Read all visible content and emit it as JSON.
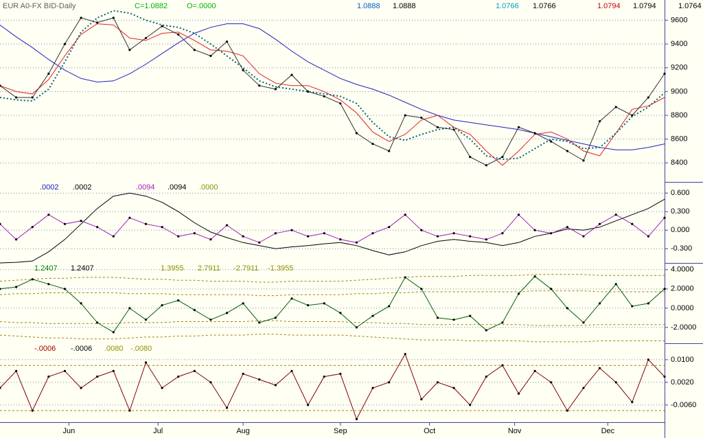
{
  "chart_data": [
    {
      "type": "line",
      "title": "EUR A0-FX BID-Daily",
      "annotations": [
        {
          "text": "C=1.0882",
          "color": "#00b000"
        },
        {
          "text": "O=.0000",
          "color": "#00b000"
        },
        {
          "text": "1.0888",
          "color": "#0060c0"
        },
        {
          "text": "1.0888",
          "color": "#000000"
        },
        {
          "text": "1.0766",
          "color": "#00a0c0"
        },
        {
          "text": "1.0766",
          "color": "#000000"
        },
        {
          "text": "1.0794",
          "color": "#c00000"
        },
        {
          "text": "1.0794",
          "color": "#000000"
        },
        {
          "text": "1.0764",
          "color": "#000000"
        }
      ],
      "x": [
        0,
        4,
        8,
        12,
        16,
        20,
        24,
        28,
        32,
        36,
        40,
        44,
        48,
        52,
        56,
        60,
        64,
        68,
        72,
        76,
        80,
        84,
        88,
        92,
        96,
        100,
        104,
        108,
        112,
        116,
        120,
        124,
        128,
        132,
        136,
        140,
        144,
        148,
        152,
        156,
        160,
        164
      ],
      "xlim": [
        0,
        164
      ],
      "ylim": [
        8240,
        9770
      ],
      "yticks": [
        9600,
        9400,
        9200,
        9000,
        8800,
        8600,
        8400
      ],
      "grid": true,
      "series": [
        {
          "color": "#2020c0",
          "style": "solid",
          "values": [
            9560,
            9460,
            9370,
            9270,
            9180,
            9110,
            9080,
            9090,
            9150,
            9230,
            9320,
            9410,
            9490,
            9540,
            9570,
            9570,
            9530,
            9440,
            9340,
            9250,
            9180,
            9110,
            9060,
            9020,
            8970,
            8910,
            8850,
            8800,
            8760,
            8740,
            8720,
            8700,
            8680,
            8650,
            8620,
            8590,
            8560,
            8530,
            8510,
            8510,
            8530,
            8560
          ]
        },
        {
          "color": "#e02020",
          "style": "solid",
          "values": [
            9050,
            9000,
            8980,
            9100,
            9300,
            9480,
            9570,
            9560,
            9450,
            9430,
            9490,
            9500,
            9430,
            9350,
            9340,
            9300,
            9150,
            9070,
            9050,
            9050,
            9000,
            8930,
            8820,
            8660,
            8580,
            8640,
            8760,
            8800,
            8700,
            8640,
            8500,
            8380,
            8500,
            8640,
            8660,
            8600,
            8500,
            8460,
            8650,
            8850,
            8880,
            8950
          ]
        },
        {
          "color": "#006070",
          "style": "dotted",
          "values": [
            8950,
            8930,
            8920,
            9020,
            9250,
            9500,
            9620,
            9680,
            9660,
            9600,
            9560,
            9540,
            9490,
            9400,
            9300,
            9200,
            9090,
            9040,
            9020,
            9000,
            8980,
            8960,
            8900,
            8740,
            8620,
            8590,
            8640,
            8680,
            8700,
            8600,
            8460,
            8430,
            8440,
            8520,
            8600,
            8580,
            8520,
            8530,
            8650,
            8790,
            8870,
            8990
          ]
        },
        {
          "color": "#303030",
          "style": "marked",
          "values": [
            9050,
            8950,
            8950,
            9150,
            9400,
            9620,
            9580,
            9620,
            9350,
            9450,
            9550,
            9480,
            9350,
            9300,
            9420,
            9180,
            9050,
            9020,
            9140,
            9000,
            8960,
            8900,
            8650,
            8560,
            8500,
            8800,
            8780,
            8700,
            8680,
            8450,
            8380,
            8450,
            8700,
            8650,
            8580,
            8500,
            8420,
            8750,
            8870,
            8800,
            8950,
            9150
          ]
        }
      ]
    },
    {
      "type": "line",
      "annotations": [
        {
          "text": ".0002",
          "color": "#2020c0"
        },
        {
          "text": ".0002",
          "color": "#000000"
        },
        {
          "text": ".0094",
          "color": "#a020c0"
        },
        {
          "text": ".0094",
          "color": "#000000"
        },
        {
          "text": ".0000",
          "color": "#909000"
        }
      ],
      "x": [
        0,
        4,
        8,
        12,
        16,
        20,
        24,
        28,
        32,
        36,
        40,
        44,
        48,
        52,
        56,
        60,
        64,
        68,
        72,
        76,
        80,
        84,
        88,
        92,
        96,
        100,
        104,
        108,
        112,
        116,
        120,
        124,
        128,
        132,
        136,
        140,
        144,
        148,
        152,
        156,
        160,
        164
      ],
      "xlim": [
        0,
        164
      ],
      "ylim": [
        -0.53,
        0.78
      ],
      "yticks": [
        {
          "value": 0.6,
          "label": "0.600"
        },
        {
          "value": 0.3,
          "label": "0.300"
        },
        {
          "value": 0,
          "label": "0.000"
        },
        {
          "value": -0.3,
          "label": "-0.300"
        }
      ],
      "grid": true,
      "series": [
        {
          "color": "#000000",
          "style": "solid",
          "values": [
            -0.53,
            -0.52,
            -0.5,
            -0.35,
            -0.15,
            0.1,
            0.35,
            0.55,
            0.6,
            0.55,
            0.45,
            0.3,
            0.12,
            -0.03,
            -0.12,
            -0.2,
            -0.25,
            -0.3,
            -0.27,
            -0.25,
            -0.22,
            -0.2,
            -0.25,
            -0.33,
            -0.4,
            -0.35,
            -0.25,
            -0.18,
            -0.15,
            -0.18,
            -0.2,
            -0.25,
            -0.2,
            -0.1,
            -0.05,
            0.02,
            0,
            0.05,
            0.15,
            0.25,
            0.35,
            0.5
          ]
        },
        {
          "color": "#a020c0",
          "style": "marked",
          "values": [
            0.1,
            -0.15,
            0.05,
            0.25,
            0.1,
            0.15,
            0.05,
            -0.1,
            0.2,
            0.1,
            0.05,
            -0.1,
            -0.05,
            -0.15,
            0.08,
            -0.1,
            -0.2,
            -0.05,
            0,
            -0.1,
            -0.05,
            -0.15,
            -0.2,
            -0.05,
            0.05,
            0.25,
            0,
            -0.1,
            -0.05,
            -0.1,
            -0.15,
            -0.05,
            0.25,
            0,
            -0.05,
            0.05,
            -0.1,
            0.1,
            0.25,
            0.1,
            -0.1,
            0.2
          ]
        }
      ]
    },
    {
      "type": "line",
      "annotations": [
        {
          "text": "1.2407",
          "color": "#008000"
        },
        {
          "text": "1.2407",
          "color": "#000000"
        },
        {
          "text": "1.3955",
          "color": "#909000"
        },
        {
          "text": "2.7911",
          "color": "#909000"
        },
        {
          "text": "-2.7911",
          "color": "#909000"
        },
        {
          "text": "-1.3955",
          "color": "#909000"
        }
      ],
      "x": [
        0,
        4,
        8,
        12,
        16,
        20,
        24,
        28,
        32,
        36,
        40,
        44,
        48,
        52,
        56,
        60,
        64,
        68,
        72,
        76,
        80,
        84,
        88,
        92,
        96,
        100,
        104,
        108,
        112,
        116,
        120,
        124,
        128,
        132,
        136,
        140,
        144,
        148,
        152,
        156,
        160,
        164
      ],
      "xlim": [
        0,
        164
      ],
      "ylim": [
        -3.65,
        4.7
      ],
      "yticks": [
        {
          "value": 4,
          "label": "4.0000"
        },
        {
          "value": 2,
          "label": "2.0000"
        },
        {
          "value": 0,
          "label": "0.0000"
        },
        {
          "value": -2,
          "label": "-2.0000"
        }
      ],
      "grid": true,
      "series": [
        {
          "color": "#a08000",
          "style": "dashed",
          "values": [
            2.8,
            2.9,
            3.0,
            3.1,
            3.1,
            3.2,
            3.2,
            3.2,
            3.1,
            3.0,
            3.0,
            2.9,
            2.9,
            2.8,
            2.8,
            2.8,
            2.7,
            2.7,
            2.8,
            2.8,
            2.8,
            2.8,
            2.9,
            3.0,
            3.1,
            3.2,
            3.3,
            3.3,
            3.3,
            3.4,
            3.4,
            3.4,
            3.4,
            3.5,
            3.5,
            3.5,
            3.5,
            3.4,
            3.4,
            3.4,
            3.4,
            3.4
          ]
        },
        {
          "color": "#a08000",
          "style": "dashed",
          "values": [
            1.4,
            1.5,
            1.5,
            1.6,
            1.6,
            1.6,
            1.6,
            1.6,
            1.5,
            1.5,
            1.5,
            1.4,
            1.4,
            1.4,
            1.4,
            1.4,
            1.3,
            1.3,
            1.4,
            1.4,
            1.4,
            1.4,
            1.5,
            1.5,
            1.6,
            1.6,
            1.7,
            1.7,
            1.7,
            1.7,
            1.7,
            1.7,
            1.7,
            1.8,
            1.8,
            1.8,
            1.8,
            1.7,
            1.7,
            1.7,
            1.7,
            1.7
          ]
        },
        {
          "color": "#a08000",
          "style": "dashed",
          "values": [
            -1.4,
            -1.5,
            -1.5,
            -1.6,
            -1.6,
            -1.6,
            -1.6,
            -1.6,
            -1.5,
            -1.5,
            -1.5,
            -1.4,
            -1.4,
            -1.4,
            -1.4,
            -1.4,
            -1.3,
            -1.3,
            -1.4,
            -1.4,
            -1.4,
            -1.4,
            -1.5,
            -1.5,
            -1.6,
            -1.6,
            -1.7,
            -1.7,
            -1.7,
            -1.7,
            -1.7,
            -1.7,
            -1.7,
            -1.8,
            -1.8,
            -1.8,
            -1.8,
            -1.7,
            -1.7,
            -1.7,
            -1.7,
            -1.7
          ]
        },
        {
          "color": "#a08000",
          "style": "dashed",
          "values": [
            -2.8,
            -2.9,
            -3.0,
            -3.1,
            -3.1,
            -3.2,
            -3.2,
            -3.2,
            -3.1,
            -3.0,
            -3.0,
            -2.9,
            -2.9,
            -2.8,
            -2.8,
            -2.8,
            -2.7,
            -2.7,
            -2.8,
            -2.8,
            -2.8,
            -2.8,
            -2.9,
            -3.0,
            -3.1,
            -3.2,
            -3.3,
            -3.3,
            -3.3,
            -3.4,
            -3.4,
            -3.4,
            -3.4,
            -3.5,
            -3.5,
            -3.5,
            -3.5,
            -3.4,
            -3.4,
            -3.4,
            -3.4,
            -3.4
          ]
        },
        {
          "color": "#006000",
          "style": "marked",
          "values": [
            2.0,
            2.2,
            3.0,
            2.5,
            2.0,
            0.5,
            -1.5,
            -2.5,
            0,
            -1.2,
            0.3,
            0.8,
            -0.2,
            -1.2,
            -0.5,
            0.5,
            -1.5,
            -1.0,
            1.0,
            0.3,
            0.5,
            -0.5,
            -2.0,
            -0.8,
            0.2,
            3.2,
            2.0,
            -1.0,
            -1.2,
            -0.8,
            -2.3,
            -1.5,
            1.5,
            3.3,
            2.0,
            0,
            -1.5,
            0.5,
            2.5,
            0.2,
            0.5,
            2.0
          ]
        }
      ]
    },
    {
      "type": "line",
      "annotations": [
        {
          "text": "-.0006",
          "color": "#a00000"
        },
        {
          "text": "-.0006",
          "color": "#000000"
        },
        {
          "text": ".0080",
          "color": "#909000"
        },
        {
          "text": "-.0080",
          "color": "#909000"
        }
      ],
      "x": [
        0,
        4,
        8,
        12,
        16,
        20,
        24,
        28,
        32,
        36,
        40,
        44,
        48,
        52,
        56,
        60,
        64,
        68,
        72,
        76,
        80,
        84,
        88,
        92,
        96,
        100,
        104,
        108,
        112,
        116,
        120,
        124,
        128,
        132,
        136,
        140,
        144,
        148,
        152,
        156,
        160,
        164
      ],
      "xlim": [
        0,
        164
      ],
      "ylim": [
        -0.0121,
        0.0158
      ],
      "yticks": [
        {
          "value": 0.01,
          "label": "0.0100"
        },
        {
          "value": 0.002,
          "label": "0.0020"
        },
        {
          "value": -0.006,
          "label": "-0.0060"
        }
      ],
      "grid": true,
      "xticks": [
        {
          "value": 17,
          "label": "Jun"
        },
        {
          "value": 39,
          "label": "Jul"
        },
        {
          "value": 60,
          "label": "Aug"
        },
        {
          "value": 84,
          "label": "Sep"
        },
        {
          "value": 106,
          "label": "Oct"
        },
        {
          "value": 127,
          "label": "Nov"
        },
        {
          "value": 150,
          "label": "Dec"
        }
      ],
      "series": [
        {
          "color": "#a08000",
          "style": "dashed",
          "values": [
            0.008,
            0.008,
            0.008,
            0.008,
            0.008,
            0.008,
            0.008,
            0.008,
            0.008,
            0.008,
            0.008,
            0.008,
            0.008,
            0.008,
            0.008,
            0.008,
            0.008,
            0.008,
            0.008,
            0.008,
            0.008,
            0.008,
            0.008,
            0.008,
            0.008,
            0.008,
            0.008,
            0.008,
            0.008,
            0.008,
            0.008,
            0.008,
            0.008,
            0.008,
            0.008,
            0.008,
            0.008,
            0.008,
            0.008,
            0.008,
            0.008,
            0.008
          ]
        },
        {
          "color": "#a08000",
          "style": "dashed",
          "values": [
            -0.008,
            -0.008,
            -0.008,
            -0.008,
            -0.008,
            -0.008,
            -0.008,
            -0.008,
            -0.008,
            -0.008,
            -0.008,
            -0.008,
            -0.008,
            -0.008,
            -0.008,
            -0.008,
            -0.008,
            -0.008,
            -0.008,
            -0.008,
            -0.008,
            -0.008,
            -0.008,
            -0.008,
            -0.008,
            -0.008,
            -0.008,
            -0.008,
            -0.008,
            -0.008,
            -0.008,
            -0.008,
            -0.008,
            -0.008,
            -0.008,
            -0.008,
            -0.008,
            -0.008,
            -0.008,
            -0.008,
            -0.008,
            -0.008
          ]
        },
        {
          "color": "#800000",
          "style": "marked",
          "values": [
            0,
            0.006,
            -0.008,
            0.004,
            0.006,
            0,
            0.004,
            0.006,
            -0.008,
            0.009,
            0,
            0.004,
            0.006,
            0.002,
            -0.007,
            0.005,
            0.003,
            0.001,
            0.006,
            -0.006,
            0.004,
            0.005,
            -0.011,
            0,
            0.002,
            0.012,
            -0.004,
            0.002,
            0,
            -0.006,
            0.004,
            0.008,
            -0.002,
            0.006,
            0.002,
            -0.008,
            0,
            0.007,
            0.002,
            -0.005,
            0.01,
            0.004
          ]
        }
      ]
    }
  ]
}
